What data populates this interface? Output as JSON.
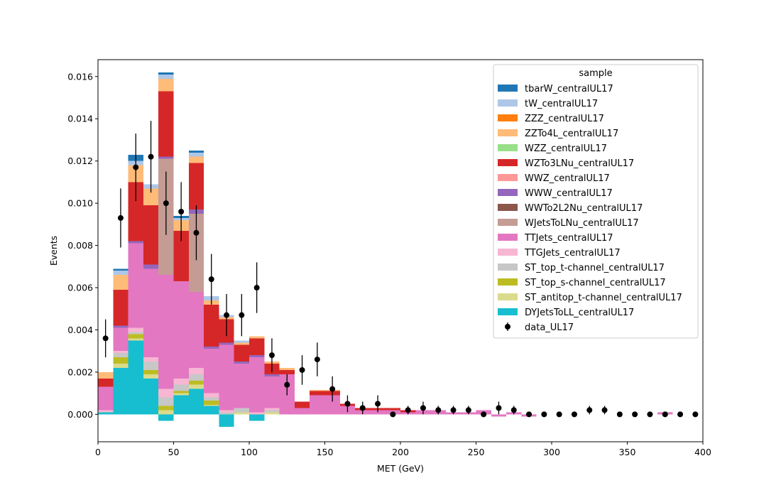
{
  "chart_data": {
    "type": "bar",
    "stacked": true,
    "histogram": true,
    "xlabel": "MET (GeV)",
    "ylabel": "Events",
    "xlim": [
      0,
      400
    ],
    "ylim": [
      -0.0013,
      0.0168
    ],
    "bin_width": 10,
    "xticks": [
      0,
      50,
      100,
      150,
      200,
      250,
      300,
      350,
      400
    ],
    "yticks": [
      0.0,
      0.002,
      0.004,
      0.006,
      0.008,
      0.01,
      0.012,
      0.014,
      0.016
    ],
    "ytick_labels": [
      "0.000",
      "0.002",
      "0.004",
      "0.006",
      "0.008",
      "0.010",
      "0.012",
      "0.014",
      "0.016"
    ],
    "grid": false,
    "legend": {
      "title": "sample",
      "placement": "top-right",
      "entries": [
        {
          "label": "tbarW_centralUL17",
          "color": "#1f77b4",
          "marker": "patch"
        },
        {
          "label": "tW_centralUL17",
          "color": "#aec7e8",
          "marker": "patch"
        },
        {
          "label": "ZZZ_centralUL17",
          "color": "#ff7f0e",
          "marker": "patch"
        },
        {
          "label": "ZZTo4L_centralUL17",
          "color": "#ffbb78",
          "marker": "patch"
        },
        {
          "label": "WZZ_centralUL17",
          "color": "#98df8a",
          "marker": "patch"
        },
        {
          "label": "WZTo3LNu_centralUL17",
          "color": "#d62728",
          "marker": "patch"
        },
        {
          "label": "WWZ_centralUL17",
          "color": "#ff9896",
          "marker": "patch"
        },
        {
          "label": "WWW_centralUL17",
          "color": "#9467bd",
          "marker": "patch"
        },
        {
          "label": "WWTo2L2Nu_centralUL17",
          "color": "#8c564b",
          "marker": "patch"
        },
        {
          "label": "WJetsToLNu_centralUL17",
          "color": "#c49c94",
          "marker": "patch"
        },
        {
          "label": "TTJets_centralUL17",
          "color": "#e377c2",
          "marker": "patch"
        },
        {
          "label": "TTGJets_centralUL17",
          "color": "#f7b6d2",
          "marker": "patch"
        },
        {
          "label": "ST_top_t-channel_centralUL17",
          "color": "#c7c7c7",
          "marker": "patch"
        },
        {
          "label": "ST_top_s-channel_centralUL17",
          "color": "#bcbd22",
          "marker": "patch"
        },
        {
          "label": "ST_antitop_t-channel_centralUL17",
          "color": "#dbdb8d",
          "marker": "patch"
        },
        {
          "label": "DYJetsToLL_centralUL17",
          "color": "#17becf",
          "marker": "patch"
        },
        {
          "label": "data_UL17",
          "color": "#000000",
          "marker": "errorbar"
        }
      ]
    },
    "categories": [
      5,
      15,
      25,
      35,
      45,
      55,
      65,
      75,
      85,
      95,
      105,
      115,
      125,
      135,
      145,
      155,
      165,
      175,
      185,
      195,
      205,
      215,
      225,
      235,
      245,
      255,
      265,
      275,
      285,
      295,
      305,
      315,
      325,
      335,
      345,
      355,
      365,
      375,
      385,
      395
    ],
    "stack_order_bottom_to_top": [
      "DYJetsToLL_centralUL17",
      "ST_antitop_t-channel_centralUL17",
      "ST_top_s-channel_centralUL17",
      "ST_top_t-channel_centralUL17",
      "TTGJets_centralUL17",
      "TTJets_centralUL17",
      "WJetsToLNu_centralUL17",
      "WWTo2L2Nu_centralUL17",
      "WWW_centralUL17",
      "WWZ_centralUL17",
      "WZTo3LNu_centralUL17",
      "WZZ_centralUL17",
      "ZZTo4L_centralUL17",
      "ZZZ_centralUL17",
      "tW_centralUL17",
      "tbarW_centralUL17"
    ],
    "series": [
      {
        "name": "DYJetsToLL_centralUL17",
        "color": "#17becf",
        "values": [
          0.0001,
          0.0022,
          0.0035,
          0.0017,
          -0.0003,
          0.0009,
          0.0012,
          0.0004,
          -0.0006,
          0,
          -0.0003,
          0,
          0,
          0,
          0,
          0,
          0,
          0,
          0,
          0,
          0,
          0,
          0,
          0,
          0,
          0,
          0,
          0,
          0,
          0,
          0,
          0,
          0,
          0,
          0,
          0,
          0,
          0,
          0,
          0
        ]
      },
      {
        "name": "ST_antitop_t-channel_centralUL17",
        "color": "#dbdb8d",
        "values": [
          0,
          0.0002,
          0.0001,
          0.0002,
          0.0002,
          0.0001,
          0.0002,
          5e-05,
          0,
          0.0001,
          0,
          0.0001,
          0,
          0,
          0,
          0,
          0,
          0,
          0,
          0,
          0,
          0,
          0,
          0,
          0,
          0,
          0,
          0,
          0,
          0,
          0,
          0,
          0,
          0,
          0,
          0,
          0,
          0,
          0,
          0
        ]
      },
      {
        "name": "ST_top_s-channel_centralUL17",
        "color": "#bcbd22",
        "values": [
          0,
          0.0003,
          0.0002,
          0.0002,
          0.0002,
          0.0001,
          0.0002,
          0.0002,
          0,
          0,
          0,
          0,
          0,
          0,
          0,
          0,
          0,
          0,
          0,
          0,
          0,
          0,
          0,
          0,
          0,
          0,
          0,
          0,
          0,
          0,
          0,
          0,
          0,
          0,
          0,
          0,
          0,
          0,
          0,
          0
        ]
      },
      {
        "name": "ST_top_t-channel_centralUL17",
        "color": "#c7c7c7",
        "values": [
          0,
          0.0002,
          0.0001,
          0.0004,
          0.0004,
          0.0003,
          0.0003,
          0.00015,
          0.0001,
          0.0002,
          0,
          0.0001,
          0,
          0,
          0,
          0,
          0,
          0,
          0,
          0,
          0,
          0,
          0,
          0,
          0,
          0,
          0,
          0,
          0,
          0,
          0,
          0,
          0,
          0,
          0,
          0,
          0,
          0,
          0,
          0
        ]
      },
      {
        "name": "TTGJets_centralUL17",
        "color": "#f7b6d2",
        "values": [
          0.0001,
          0.0001,
          0.0002,
          0.0002,
          0.0004,
          0.0003,
          0.0003,
          0.0002,
          0.0001,
          0,
          0.0001,
          0.0001,
          0,
          0,
          0,
          0,
          0,
          0,
          0,
          0,
          0,
          0,
          0,
          0,
          0,
          0,
          0,
          0,
          0,
          0,
          0,
          0,
          0,
          0,
          0,
          0,
          0,
          0,
          0,
          0
        ]
      },
      {
        "name": "TTJets_centralUL17",
        "color": "#e377c2",
        "values": [
          0.0011,
          0.0011,
          0.004,
          0.0042,
          0.0054,
          0.0046,
          0.0036,
          0.0021,
          0.0031,
          0.0021,
          0.0026,
          0.0015,
          0.0019,
          0.0003,
          0.0009,
          0.0009,
          0.0004,
          0.0002,
          0.0002,
          0.0002,
          0.0001,
          0.0002,
          0.0002,
          0.0001,
          0.0001,
          0.0002,
          -0.0001,
          0.0001,
          -0.0001,
          0,
          0,
          0,
          0,
          0,
          0,
          0,
          0,
          0.0001,
          0,
          0
        ]
      },
      {
        "name": "WJetsToLNu_centralUL17",
        "color": "#c49c94",
        "values": [
          0,
          0,
          0,
          0,
          0.0055,
          0,
          0.0037,
          0,
          0,
          0,
          0,
          0,
          0,
          0,
          0,
          0,
          0,
          0,
          0,
          0,
          0,
          0,
          0,
          0,
          0,
          0,
          0,
          0,
          0,
          0,
          0,
          0,
          0,
          0,
          0,
          0,
          0,
          0,
          0,
          0
        ]
      },
      {
        "name": "WWTo2L2Nu_centralUL17",
        "color": "#8c564b",
        "values": [
          0,
          0,
          0,
          0,
          0,
          0,
          0,
          0,
          0,
          0,
          0,
          0,
          0,
          0,
          0,
          0,
          0,
          0,
          0,
          0,
          0,
          0,
          0,
          0,
          0,
          0,
          0,
          0,
          0,
          0,
          0,
          0,
          0,
          0,
          0,
          0,
          0,
          0,
          0,
          0
        ]
      },
      {
        "name": "WWW_centralUL17",
        "color": "#9467bd",
        "values": [
          0,
          0.0001,
          0.0001,
          0.0002,
          0.0001,
          0,
          0.0002,
          0.0001,
          0.0001,
          0.0001,
          0.0001,
          0.0001,
          0,
          0,
          0,
          0,
          0,
          0,
          0,
          0,
          0,
          0,
          0,
          0,
          0,
          0,
          0,
          0,
          0,
          0,
          0,
          0,
          0,
          0,
          0,
          0,
          0,
          0,
          0,
          0
        ]
      },
      {
        "name": "WWZ_centralUL17",
        "color": "#ff9896",
        "values": [
          0,
          0,
          0,
          0,
          0,
          0,
          0,
          0,
          0,
          0,
          0,
          0,
          0,
          0,
          0,
          0,
          0,
          0,
          0,
          0,
          0,
          0,
          0,
          0,
          0,
          0,
          0,
          0,
          0,
          0,
          0,
          0,
          0,
          0,
          0,
          0,
          0,
          0,
          0,
          0
        ]
      },
      {
        "name": "WZTo3LNu_centralUL17",
        "color": "#d62728",
        "values": [
          0.0004,
          0.0017,
          0.0028,
          0.0028,
          0.0031,
          0.0024,
          0.0022,
          0.002,
          0.0011,
          0.0008,
          0.0008,
          0.0005,
          0.0002,
          0.0003,
          0.0002,
          0.0002,
          0.0001,
          0.0001,
          0.0001,
          0.0001,
          0.0001,
          0,
          0,
          0,
          0,
          0,
          0,
          0,
          0,
          0,
          0,
          0,
          0,
          0,
          0,
          0,
          0,
          0,
          0,
          0
        ]
      },
      {
        "name": "WZZ_centralUL17",
        "color": "#98df8a",
        "values": [
          0,
          0,
          0,
          0,
          0,
          0,
          0,
          0,
          0,
          0,
          0,
          0,
          0,
          0,
          0,
          0,
          0,
          0,
          0,
          0,
          0,
          0,
          0,
          0,
          0,
          0,
          0,
          0,
          0,
          0,
          0,
          0,
          0,
          0,
          0,
          0,
          0,
          0,
          0,
          0
        ]
      },
      {
        "name": "ZZTo4L_centralUL17",
        "color": "#ffbb78",
        "values": [
          0.0003,
          0.0007,
          0.0008,
          0.0008,
          0.0006,
          0.0005,
          0.0003,
          0.0002,
          0.0001,
          0.0001,
          0.0001,
          0.0001,
          0.0001,
          0,
          5e-05,
          5e-05,
          0,
          0,
          0,
          0,
          0,
          0,
          0,
          0,
          0,
          0,
          0,
          0,
          0,
          0,
          0,
          0,
          0,
          0,
          0,
          0,
          0,
          0,
          0,
          0
        ]
      },
      {
        "name": "ZZZ_centralUL17",
        "color": "#ff7f0e",
        "values": [
          0,
          0,
          0,
          0,
          0,
          0,
          0,
          0,
          0,
          0,
          0,
          0,
          0,
          0,
          0,
          0,
          0,
          0,
          0,
          0,
          0,
          0,
          0,
          0,
          0,
          0,
          0,
          0,
          0,
          0,
          0,
          0,
          0,
          0,
          0,
          0,
          0,
          0,
          0,
          0
        ]
      },
      {
        "name": "tW_centralUL17",
        "color": "#aec7e8",
        "values": [
          0,
          0.0002,
          0.0002,
          0.0002,
          0.0002,
          0.0001,
          0.0002,
          0.0002,
          0.0001,
          0.0001,
          0,
          0,
          0,
          0,
          0,
          0,
          0,
          0,
          0,
          0,
          0,
          0,
          0,
          0,
          0,
          0,
          0,
          0,
          0,
          0,
          0,
          0,
          0,
          0,
          0,
          0,
          0,
          0,
          0,
          0
        ]
      },
      {
        "name": "tbarW_centralUL17",
        "color": "#1f77b4",
        "values": [
          0,
          0.0001,
          0.0003,
          0,
          0.0001,
          0.0001,
          0.0001,
          0,
          0,
          0,
          0,
          0,
          0,
          0,
          0,
          0,
          0,
          0,
          0,
          0,
          0,
          0,
          0,
          0,
          0,
          0,
          0,
          0,
          0,
          0,
          0,
          0,
          0,
          0,
          0,
          0,
          0,
          0,
          0,
          0
        ]
      }
    ],
    "data_points": {
      "name": "data_UL17",
      "color": "#000000",
      "x": [
        5,
        15,
        25,
        35,
        45,
        55,
        65,
        75,
        85,
        95,
        105,
        115,
        125,
        135,
        145,
        155,
        165,
        175,
        185,
        195,
        205,
        215,
        225,
        235,
        245,
        255,
        265,
        275,
        285,
        295,
        305,
        315,
        325,
        335,
        345,
        355,
        365,
        375,
        385,
        395
      ],
      "y": [
        0.0036,
        0.0093,
        0.0117,
        0.0122,
        0.01,
        0.0096,
        0.0086,
        0.0064,
        0.0047,
        0.0047,
        0.006,
        0.0028,
        0.0014,
        0.0021,
        0.0026,
        0.0012,
        0.0005,
        0.0003,
        0.0005,
        0.0,
        0.0002,
        0.0003,
        0.0002,
        0.0002,
        0.0002,
        0.0,
        0.0003,
        0.0002,
        0.0,
        0.0,
        0.0,
        0.0,
        0.0002,
        0.0002,
        0.0,
        0.0,
        0.0,
        0.0,
        0.0,
        0.0
      ],
      "yerr": [
        0.0009,
        0.0014,
        0.0016,
        0.0017,
        0.0015,
        0.0014,
        0.0013,
        0.0012,
        0.001,
        0.001,
        0.0012,
        0.0008,
        0.0005,
        0.0007,
        0.0008,
        0.0006,
        0.0004,
        0.0003,
        0.0004,
        0.0,
        0.0002,
        0.0003,
        0.0002,
        0.0002,
        0.0002,
        0.0,
        0.0003,
        0.0002,
        0.0,
        0.0,
        0.0,
        0.0,
        0.0002,
        0.0002,
        0.0,
        0.0,
        0.0,
        0.0,
        0.0,
        0.0
      ]
    }
  }
}
